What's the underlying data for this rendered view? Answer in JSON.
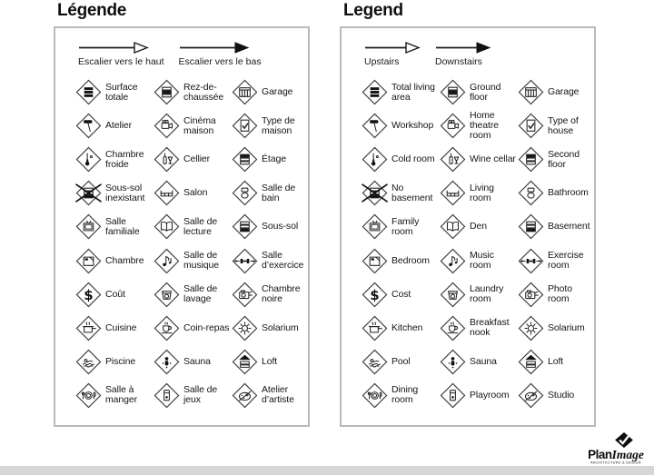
{
  "left_panel": {
    "title": "Légende",
    "arrows": {
      "up": "Escalier vers le haut",
      "down": "Escalier vers le bas"
    },
    "items": [
      {
        "icon": "total-area",
        "label": "Surface totale"
      },
      {
        "icon": "ground-floor",
        "label": "Rez-de-chaussée"
      },
      {
        "icon": "garage",
        "label": "Garage"
      },
      {
        "icon": "workshop",
        "label": "Atelier"
      },
      {
        "icon": "home-theatre",
        "label": "Cinéma maison"
      },
      {
        "icon": "type-of-house",
        "label": "Type de maison"
      },
      {
        "icon": "cold-room",
        "label": "Chambre froide"
      },
      {
        "icon": "wine-cellar",
        "label": "Cellier"
      },
      {
        "icon": "second-floor",
        "label": "Étage"
      },
      {
        "icon": "no-basement",
        "label": "Sous-sol inexistant"
      },
      {
        "icon": "living-room",
        "label": "Salon"
      },
      {
        "icon": "bathroom",
        "label": "Salle de bain"
      },
      {
        "icon": "family-room",
        "label": "Salle familiale"
      },
      {
        "icon": "den",
        "label": "Salle de lecture"
      },
      {
        "icon": "basement",
        "label": "Sous-sol"
      },
      {
        "icon": "bedroom",
        "label": "Chambre"
      },
      {
        "icon": "music-room",
        "label": "Salle de musique"
      },
      {
        "icon": "exercise-room",
        "label": "Salle d’exercice"
      },
      {
        "icon": "cost",
        "label": "Coût"
      },
      {
        "icon": "laundry-room",
        "label": "Salle de lavage"
      },
      {
        "icon": "photo-room",
        "label": "Chambre noire"
      },
      {
        "icon": "kitchen",
        "label": "Cuisine"
      },
      {
        "icon": "breakfast-nook",
        "label": "Coin-repas"
      },
      {
        "icon": "solarium",
        "label": "Solarium"
      },
      {
        "icon": "pool",
        "label": "Piscine"
      },
      {
        "icon": "sauna",
        "label": "Sauna"
      },
      {
        "icon": "loft",
        "label": "Loft"
      },
      {
        "icon": "dining-room",
        "label": "Salle à manger"
      },
      {
        "icon": "playroom",
        "label": "Salle de jeux"
      },
      {
        "icon": "studio",
        "label": "Atelier d’artiste"
      }
    ]
  },
  "right_panel": {
    "title": "Legend",
    "arrows": {
      "up": "Upstairs",
      "down": "Downstairs"
    },
    "items": [
      {
        "icon": "total-area",
        "label": "Total living area"
      },
      {
        "icon": "ground-floor",
        "label": "Ground floor"
      },
      {
        "icon": "garage",
        "label": "Garage"
      },
      {
        "icon": "workshop",
        "label": "Workshop"
      },
      {
        "icon": "home-theatre",
        "label": "Home theatre room"
      },
      {
        "icon": "type-of-house",
        "label": "Type of house"
      },
      {
        "icon": "cold-room",
        "label": "Cold room"
      },
      {
        "icon": "wine-cellar",
        "label": "Wine cellar"
      },
      {
        "icon": "second-floor",
        "label": "Second floor"
      },
      {
        "icon": "no-basement",
        "label": "No basement"
      },
      {
        "icon": "living-room",
        "label": "Living room"
      },
      {
        "icon": "bathroom",
        "label": "Bathroom"
      },
      {
        "icon": "family-room",
        "label": "Family room"
      },
      {
        "icon": "den",
        "label": "Den"
      },
      {
        "icon": "basement",
        "label": "Basement"
      },
      {
        "icon": "bedroom",
        "label": "Bedroom"
      },
      {
        "icon": "music-room",
        "label": "Music room"
      },
      {
        "icon": "exercise-room",
        "label": "Exercise room"
      },
      {
        "icon": "cost",
        "label": "Cost"
      },
      {
        "icon": "laundry-room",
        "label": "Laundry room"
      },
      {
        "icon": "photo-room",
        "label": "Photo room"
      },
      {
        "icon": "kitchen",
        "label": "Kitchen"
      },
      {
        "icon": "breakfast-nook",
        "label": "Breakfast nook"
      },
      {
        "icon": "solarium",
        "label": "Solarium"
      },
      {
        "icon": "pool",
        "label": "Pool"
      },
      {
        "icon": "sauna",
        "label": "Sauna"
      },
      {
        "icon": "loft",
        "label": "Loft"
      },
      {
        "icon": "dining-room",
        "label": "Dining room"
      },
      {
        "icon": "playroom",
        "label": "Playroom"
      },
      {
        "icon": "studio",
        "label": "Studio"
      }
    ]
  },
  "logo": {
    "plan": "Plan",
    "image": "Image",
    "tagline": "ARCHITECTURE & DESIGN"
  }
}
